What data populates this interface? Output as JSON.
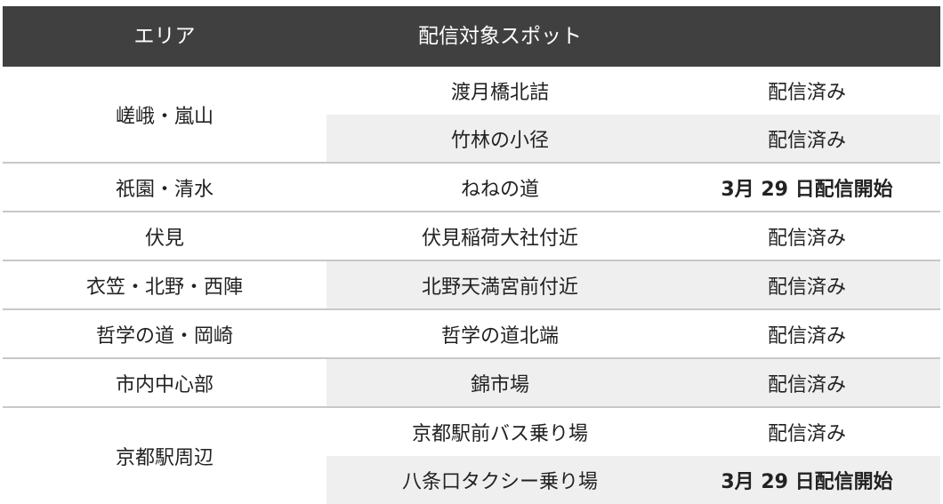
{
  "header": {
    "area": "エリア",
    "spot": "配信対象スポット",
    "status": ""
  },
  "groups": [
    {
      "area": "嵯峨・嵐山",
      "spots": [
        {
          "name": "渡月橋北詰",
          "status": "配信済み",
          "highlight": false
        },
        {
          "name": "竹林の小径",
          "status": "配信済み",
          "highlight": false
        }
      ]
    },
    {
      "area": "祇園・清水",
      "spots": [
        {
          "name": "ねねの道",
          "status": "3月 29 日配信開始",
          "highlight": true
        }
      ]
    },
    {
      "area": "伏見",
      "spots": [
        {
          "name": "伏見稲荷大社付近",
          "status": "配信済み",
          "highlight": false
        }
      ]
    },
    {
      "area": "衣笠・北野・西陣",
      "spots": [
        {
          "name": "北野天満宮前付近",
          "status": "配信済み",
          "highlight": false
        }
      ]
    },
    {
      "area": "哲学の道・岡崎",
      "spots": [
        {
          "name": "哲学の道北端",
          "status": "配信済み",
          "highlight": false
        }
      ]
    },
    {
      "area": "市内中心部",
      "spots": [
        {
          "name": "錦市場",
          "status": "配信済み",
          "highlight": false
        }
      ]
    },
    {
      "area": "京都駅周辺",
      "spots": [
        {
          "name": "京都駅前バス乗り場",
          "status": "配信済み",
          "highlight": false
        },
        {
          "name": "八条口タクシー乗り場",
          "status": "3月 29 日配信開始",
          "highlight": true
        }
      ]
    }
  ]
}
